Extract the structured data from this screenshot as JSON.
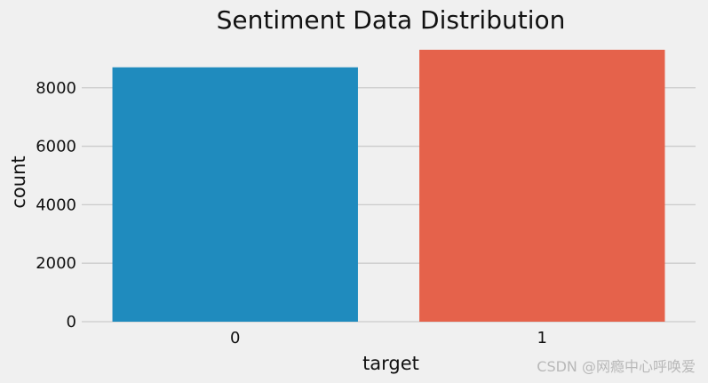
{
  "chart_data": {
    "type": "bar",
    "title": "Sentiment Data Distribution",
    "xlabel": "target",
    "ylabel": "count",
    "categories": [
      "0",
      "1"
    ],
    "values": [
      8700,
      9300
    ],
    "ylim": [
      0,
      9300
    ],
    "yticks": [
      0,
      2000,
      4000,
      6000,
      8000
    ],
    "ytick_labels": [
      "0",
      "2000",
      "4000",
      "6000",
      "8000"
    ],
    "colors": [
      "#1f8bbe",
      "#e5624b"
    ],
    "grid": true,
    "legend": "none"
  },
  "watermark": "CSDN @网瘾中心呼唤爱"
}
